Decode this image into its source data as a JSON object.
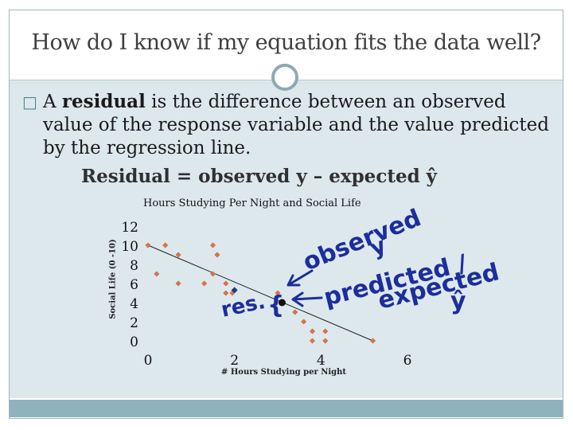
{
  "slide": {
    "title": "How do I know if my equation fits the data well?",
    "bullet_icon": "square-bullet-icon",
    "paragraph": {
      "prefix": "A ",
      "term": "residual",
      "rest": " is the difference between an observed value of the response variable and the value predicted by the regression line."
    },
    "formula": "Residual = observed y – expected ŷ"
  },
  "chart_data": {
    "type": "scatter",
    "title": "Hours Studying Per Night and Social Life",
    "xlabel": "# Hours Studying per Night",
    "ylabel": "Social Life (0 -10)",
    "xlim": [
      0,
      6
    ],
    "ylim": [
      0,
      12
    ],
    "x_ticks": [
      "0",
      "2",
      "4",
      "6"
    ],
    "y_ticks": [
      "0",
      "2",
      "4",
      "6",
      "8",
      "10",
      "12"
    ],
    "grid": false,
    "points": [
      {
        "x": 0.0,
        "y": 10
      },
      {
        "x": 0.4,
        "y": 10
      },
      {
        "x": 0.7,
        "y": 9
      },
      {
        "x": 1.5,
        "y": 10
      },
      {
        "x": 1.6,
        "y": 9
      },
      {
        "x": 0.2,
        "y": 7
      },
      {
        "x": 0.7,
        "y": 6
      },
      {
        "x": 1.3,
        "y": 6
      },
      {
        "x": 1.5,
        "y": 7
      },
      {
        "x": 1.8,
        "y": 6
      },
      {
        "x": 1.8,
        "y": 5
      },
      {
        "x": 1.95,
        "y": 5
      },
      {
        "x": 3.0,
        "y": 5
      },
      {
        "x": 3.4,
        "y": 3
      },
      {
        "x": 3.6,
        "y": 2
      },
      {
        "x": 3.8,
        "y": 1
      },
      {
        "x": 4.1,
        "y": 1
      },
      {
        "x": 3.8,
        "y": 0
      },
      {
        "x": 4.1,
        "y": 0
      },
      {
        "x": 5.2,
        "y": 0
      }
    ],
    "regression_line": {
      "x0": 0,
      "y0": 10,
      "x1": 5.2,
      "y1": 0
    },
    "highlight": {
      "observed": {
        "x": 2.0,
        "y": 5.3
      },
      "predicted": {
        "x": 3.1,
        "y": 4.0
      }
    },
    "annotations": {
      "observed_text": "observed",
      "observed_symbol": "y",
      "predicted_text": "predicted /",
      "expected_text": "expected",
      "expected_symbol": "ŷ",
      "residual_text": "res.",
      "brace": "{"
    }
  }
}
